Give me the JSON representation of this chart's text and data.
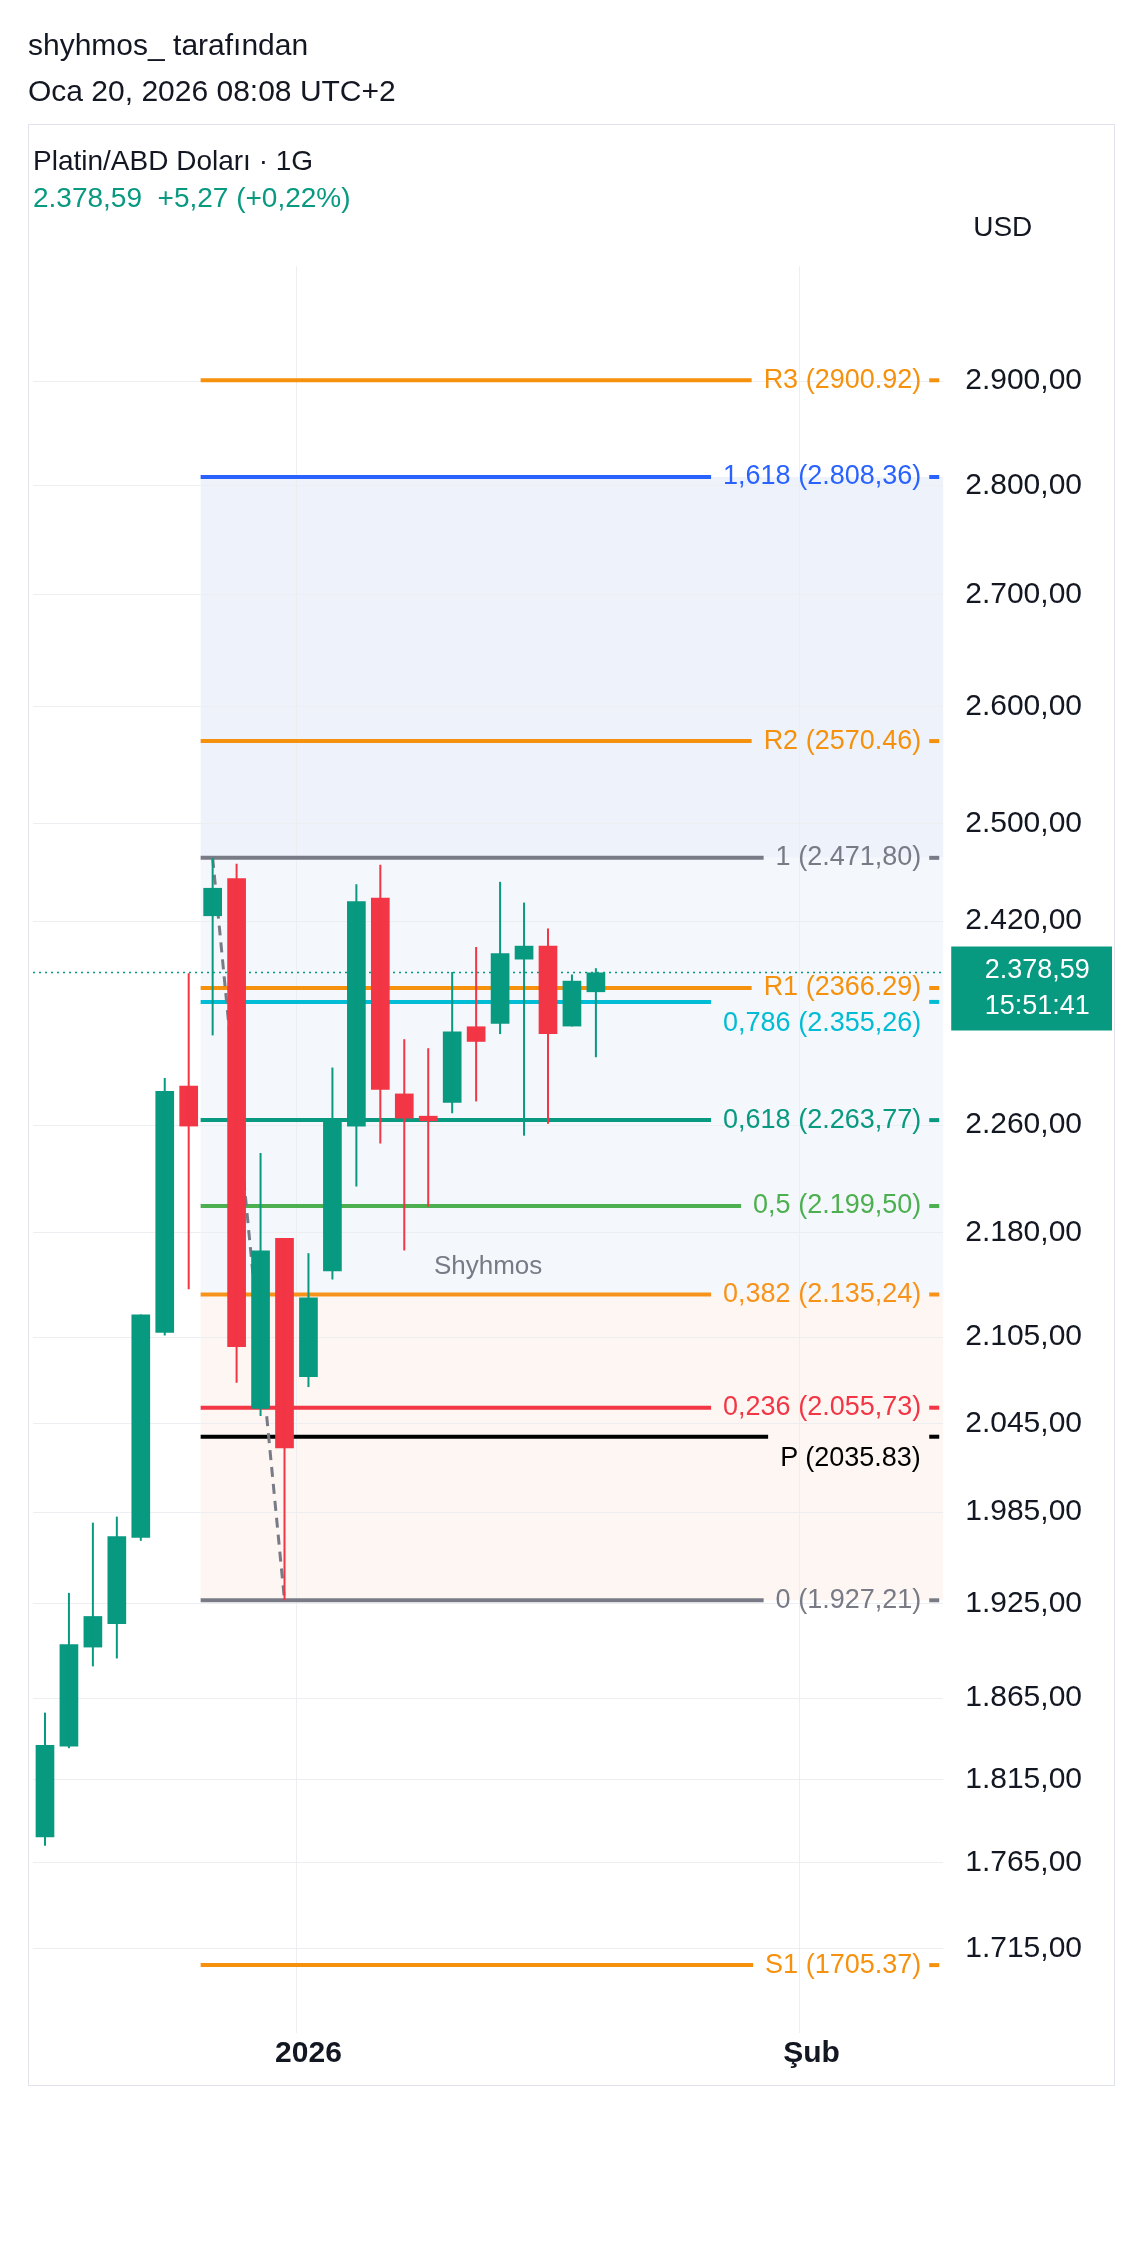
{
  "chart_data": {
    "type": "candlestick",
    "title": "Platin/ABD Doları · 1G",
    "subtitle": "2.378,59  +5,27 (+0,22%)",
    "ylabel": "USD",
    "annotations": [
      "shyhmos_ tarafından",
      "Oca 20, 2026 08:08 UTC+2",
      "Shyhmos"
    ],
    "categories": [
      null,
      null,
      null,
      null,
      null,
      null,
      null,
      null,
      null,
      null,
      null,
      "2026",
      null,
      null,
      null,
      null,
      null,
      null,
      null,
      null,
      null,
      null,
      null,
      null,
      null,
      null,
      null,
      null,
      null,
      null,
      null,
      null,
      "Şub",
      null,
      null,
      null,
      null,
      null
    ],
    "ohlc": [
      [
        1780,
        1856,
        1775,
        1836
      ],
      [
        1835,
        1932,
        1834,
        1899
      ],
      [
        1897,
        1978,
        1885,
        1917
      ],
      [
        1912,
        1982,
        1890,
        1969
      ],
      [
        1968,
        2121,
        1966,
        2121
      ],
      [
        2108,
        2296,
        2106,
        2286
      ],
      [
        2290,
        2378,
        2139,
        2259
      ],
      [
        2424,
        2471.8,
        2329,
        2447
      ],
      [
        2455,
        2467,
        2073,
        2098
      ],
      [
        2055,
        2239,
        2050,
        2167
      ],
      [
        2176,
        2176,
        1927.21,
        2028
      ],
      [
        2077,
        2165,
        2070,
        2133
      ],
      [
        2152,
        2304,
        2146,
        2264
      ],
      [
        2259,
        2450,
        2214,
        2436
      ],
      [
        2439,
        2466,
        2246,
        2287
      ],
      [
        2284,
        2326,
        2167,
        2265
      ],
      [
        2267,
        2319,
        2199,
        2263
      ],
      [
        2277,
        2379,
        2269,
        2332
      ],
      [
        2336,
        2399,
        2278,
        2324
      ],
      [
        2338,
        2452,
        2330,
        2394
      ],
      [
        2389,
        2435,
        2252,
        2400
      ],
      [
        2400,
        2414,
        2261,
        2330
      ],
      [
        2336,
        2377,
        2336,
        2372
      ],
      [
        2363,
        2382,
        2312,
        2378.59
      ],
      null,
      null,
      null,
      null,
      null,
      null,
      null,
      null,
      null,
      null,
      null,
      null,
      null,
      null
    ],
    "colors": [
      "#089981",
      "#089981",
      "#089981",
      "#089981",
      "#089981",
      "#089981",
      "#f23645",
      "#089981",
      "#f23645",
      "#089981",
      "#f23645",
      "#089981",
      "#089981",
      "#089981",
      "#f23645",
      "#f23645",
      "#f23645",
      "#089981",
      "#f23645",
      "#089981",
      "#089981",
      "#f23645",
      "#089981",
      "#089981",
      null,
      null,
      null,
      null,
      null,
      null,
      null,
      null,
      null,
      null,
      null,
      null,
      null,
      null
    ],
    "series": [
      {
        "type": "line",
        "color": "#787b86",
        "line_style": "dashed",
        "values": [
          null,
          null,
          null,
          null,
          null,
          null,
          null,
          2471.8,
          null,
          null,
          1927.21,
          null,
          null,
          null,
          null,
          null,
          null,
          null,
          null,
          null,
          null,
          null,
          null,
          null,
          null,
          null,
          null,
          null,
          null,
          null,
          null,
          null,
          null,
          null,
          null,
          null,
          null,
          null
        ]
      }
    ],
    "log": true,
    "ylim": [
      1667,
      3014
    ],
    "yticks": [
      {
        "value": 1715,
        "label": "1.715,00"
      },
      {
        "value": 1765,
        "label": "1.765,00"
      },
      {
        "value": 1815,
        "label": "1.815,00"
      },
      {
        "value": 1865,
        "label": "1.865,00"
      },
      {
        "value": 1925,
        "label": "1.925,00"
      },
      {
        "value": 1985,
        "label": "1.985,00"
      },
      {
        "value": 2045,
        "label": "2.045,00"
      },
      {
        "value": 2105,
        "label": "2.105,00"
      },
      {
        "value": 2180,
        "label": "2.180,00"
      },
      {
        "value": 2260,
        "label": "2.260,00"
      },
      {
        "value": 2420,
        "label": "2.420,00"
      },
      {
        "value": 2500,
        "label": "2.500,00"
      },
      {
        "value": 2600,
        "label": "2.600,00"
      },
      {
        "value": 2700,
        "label": "2.700,00"
      },
      {
        "value": 2800,
        "label": "2.800,00"
      },
      {
        "value": 2900,
        "label": "2.900,00"
      }
    ],
    "grid": true,
    "legend": false,
    "bands": [
      {
        "axis": "y",
        "from": 2471.8,
        "to": 2808.36,
        "color": "#edf2fb"
      },
      {
        "axis": "y",
        "from": 2135.24,
        "to": 2471.8,
        "color": "#f4f7fb"
      },
      {
        "axis": "y",
        "from": 1927.21,
        "to": 2135.24,
        "color": "#fdf6f3"
      }
    ],
    "ref_lines": [
      {
        "axis": "y",
        "value": 2900.92,
        "label": "R3 (2900.92)",
        "color": "#f5910d"
      },
      {
        "axis": "y",
        "value": 2808.36,
        "label": "1,618 (2.808,36)",
        "color": "#2962ff"
      },
      {
        "axis": "y",
        "value": 2570.46,
        "label": "R2 (2570.46)",
        "color": "#f5910d"
      },
      {
        "axis": "y",
        "value": 2471.8,
        "label": "1 (2.471,80)",
        "color": "#787b86"
      },
      {
        "axis": "y",
        "value": 2366.29,
        "label": "R1 (2366.29)",
        "color": "#f5910d"
      },
      {
        "axis": "y",
        "value": 2355.26,
        "label": "0,786 (2.355,26)",
        "color": "#00bcd4"
      },
      {
        "axis": "y",
        "value": 2263.77,
        "label": "0,618 (2.263,77)",
        "color": "#089981"
      },
      {
        "axis": "y",
        "value": 2199.5,
        "label": "0,5 (2.199,50)",
        "color": "#4caf50"
      },
      {
        "axis": "y",
        "value": 2135.24,
        "label": "0,382 (2.135,24)",
        "color": "#f7931a"
      },
      {
        "axis": "y",
        "value": 2055.73,
        "label": "0,236 (2.055,73)",
        "color": "#f23645"
      },
      {
        "axis": "y",
        "value": 2035.83,
        "label": "P (2035.83)",
        "color": "#000000"
      },
      {
        "axis": "y",
        "value": 1927.21,
        "label": "0 (1.927,21)",
        "color": "#787b86"
      },
      {
        "axis": "y",
        "value": 1705.37,
        "label": "S1 (1705.37)",
        "color": "#f5910d"
      },
      {
        "axis": "y",
        "value": 2378.59,
        "label": "2.378,59 15:51:41",
        "color": "#089981",
        "line_style": "dotted"
      }
    ]
  }
}
